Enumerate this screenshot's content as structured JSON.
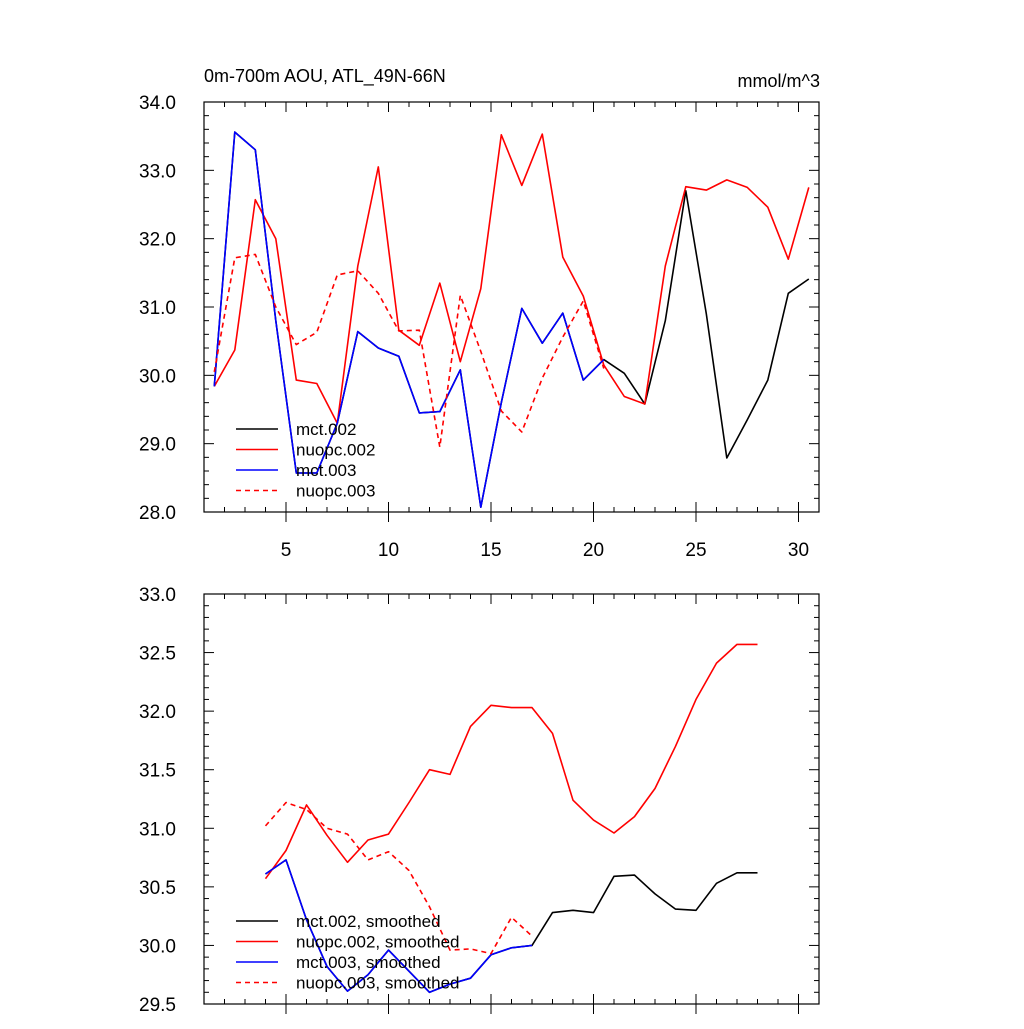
{
  "chart_data": [
    {
      "type": "line",
      "title": "0m-700m AOU, ATL_49N-66N",
      "units": "mmol/m^3",
      "xlim": [
        1,
        31
      ],
      "ylim": [
        28.0,
        34.0
      ],
      "x_ticks": [
        5,
        10,
        15,
        20,
        25,
        30
      ],
      "x_tick_labels": [
        "5",
        "10",
        "15",
        "20",
        "25",
        "30"
      ],
      "y_ticks": [
        28.0,
        29.0,
        30.0,
        31.0,
        32.0,
        33.0,
        34.0
      ],
      "y_tick_labels": [
        "28.0",
        "29.0",
        "30.0",
        "31.0",
        "32.0",
        "33.0",
        "34.0"
      ],
      "legend_position": "bottom-left",
      "series": [
        {
          "name": "mct.002",
          "color": "#000000",
          "dash": "solid",
          "x": [
            1.5,
            2.5,
            3.5,
            4.5,
            5.5,
            6.5,
            7.5,
            8.5,
            9.5,
            10.5,
            11.5,
            12.5,
            13.5,
            14.5,
            15.5,
            16.5,
            17.5,
            18.5,
            19.5,
            20.5,
            21.5,
            22.5,
            23.5,
            24.5,
            25.5,
            26.5,
            27.5,
            28.5,
            29.5,
            30.5
          ],
          "values": [
            29.84,
            33.56,
            33.3,
            30.8,
            28.57,
            28.57,
            29.3,
            30.64,
            30.4,
            30.28,
            29.45,
            29.47,
            30.08,
            28.07,
            29.6,
            30.98,
            30.47,
            30.91,
            29.93,
            30.23,
            30.03,
            29.58,
            30.8,
            32.7,
            30.9,
            28.79,
            29.35,
            29.93,
            31.2,
            31.41
          ]
        },
        {
          "name": "nuopc.002",
          "color": "#ff0000",
          "dash": "solid",
          "x": [
            1.5,
            2.5,
            3.5,
            4.5,
            5.5,
            6.5,
            7.5,
            8.5,
            9.5,
            10.5,
            11.5,
            12.5,
            13.5,
            14.5,
            15.5,
            16.5,
            17.5,
            18.5,
            19.5,
            20.5,
            21.5,
            22.5,
            23.5,
            24.5,
            25.5,
            26.5,
            27.5,
            28.5,
            29.5,
            30.5
          ],
          "values": [
            29.84,
            30.37,
            32.57,
            32.0,
            29.93,
            29.88,
            29.3,
            31.6,
            33.05,
            30.66,
            30.44,
            31.35,
            30.2,
            31.27,
            33.52,
            32.78,
            33.53,
            31.73,
            31.16,
            30.15,
            29.69,
            29.58,
            31.6,
            32.76,
            32.71,
            32.86,
            32.75,
            32.46,
            31.7,
            32.75
          ]
        },
        {
          "name": "mct.003",
          "color": "#0000ff",
          "dash": "solid",
          "x": [
            1.5,
            2.5,
            3.5,
            4.5,
            5.5,
            6.5,
            7.5,
            8.5,
            9.5,
            10.5,
            11.5,
            12.5,
            13.5,
            14.5,
            15.5,
            16.5,
            17.5,
            18.5,
            19.5,
            20.5
          ],
          "values": [
            29.84,
            33.56,
            33.3,
            30.8,
            28.57,
            28.57,
            29.3,
            30.64,
            30.4,
            30.28,
            29.45,
            29.47,
            30.08,
            28.07,
            29.6,
            30.98,
            30.47,
            30.91,
            29.93,
            30.23
          ]
        },
        {
          "name": "nuopc.003",
          "color": "#ff0000",
          "dash": "dashed",
          "x": [
            1.5,
            2.5,
            3.5,
            4.5,
            5.5,
            6.5,
            7.5,
            8.5,
            9.5,
            10.5,
            11.5,
            12.5,
            13.5,
            14.5,
            15.5,
            16.5,
            17.5,
            18.5,
            19.5,
            20.5
          ],
          "values": [
            30.05,
            31.72,
            31.77,
            31.0,
            30.45,
            30.63,
            31.47,
            31.53,
            31.2,
            30.65,
            30.66,
            28.95,
            31.17,
            30.35,
            29.48,
            29.17,
            29.96,
            30.56,
            31.09,
            30.1
          ]
        }
      ]
    },
    {
      "type": "line",
      "title": "",
      "xlim": [
        1,
        31
      ],
      "ylim": [
        29.5,
        33.0
      ],
      "x_ticks": [
        5,
        10,
        15,
        20,
        25,
        30
      ],
      "x_tick_labels": [],
      "y_ticks": [
        29.5,
        30.0,
        30.5,
        31.0,
        31.5,
        32.0,
        32.5,
        33.0
      ],
      "y_tick_labels": [
        "29.5",
        "30.0",
        "30.5",
        "31.0",
        "31.5",
        "32.0",
        "32.5",
        "33.0"
      ],
      "legend_position": "bottom-left",
      "series": [
        {
          "name": "mct.002, smoothed",
          "color": "#000000",
          "dash": "solid",
          "x": [
            4,
            5,
            6,
            7,
            8,
            9,
            10,
            11,
            12,
            13,
            14,
            15,
            16,
            17,
            18,
            19,
            20,
            21,
            22,
            23,
            24,
            25,
            26,
            27,
            28
          ],
          "values": [
            30.61,
            30.73,
            30.22,
            29.82,
            29.61,
            29.75,
            29.96,
            29.78,
            29.6,
            29.67,
            29.72,
            29.92,
            29.98,
            30.0,
            30.28,
            30.3,
            30.28,
            30.59,
            30.6,
            30.44,
            30.31,
            30.3,
            30.53,
            30.62,
            30.62
          ]
        },
        {
          "name": "nuopc.002, smoothed",
          "color": "#ff0000",
          "dash": "solid",
          "x": [
            4,
            5,
            6,
            7,
            8,
            9,
            10,
            11,
            12,
            13,
            14,
            15,
            16,
            17,
            18,
            19,
            20,
            21,
            22,
            23,
            24,
            25,
            26,
            27,
            28
          ],
          "values": [
            30.57,
            30.81,
            31.2,
            30.94,
            30.71,
            30.9,
            30.95,
            31.22,
            31.5,
            31.46,
            31.87,
            32.05,
            32.03,
            32.03,
            31.81,
            31.24,
            31.07,
            30.96,
            31.1,
            31.34,
            31.7,
            32.1,
            32.41,
            32.57,
            32.57
          ]
        },
        {
          "name": "mct.003, smoothed",
          "color": "#0000ff",
          "dash": "solid",
          "x": [
            4,
            5,
            6,
            7,
            8,
            9,
            10,
            11,
            12,
            13,
            14,
            15,
            16,
            17
          ],
          "values": [
            30.61,
            30.73,
            30.22,
            29.82,
            29.61,
            29.75,
            29.96,
            29.78,
            29.6,
            29.67,
            29.72,
            29.92,
            29.98,
            30.0
          ]
        },
        {
          "name": "nuopc.003, smoothed",
          "color": "#ff0000",
          "dash": "dashed",
          "x": [
            4,
            5,
            6,
            7,
            8,
            9,
            10,
            11,
            12,
            13,
            14,
            15,
            16,
            17
          ],
          "values": [
            31.02,
            31.22,
            31.16,
            31.0,
            30.95,
            30.73,
            30.8,
            30.64,
            30.33,
            29.96,
            29.97,
            29.93,
            30.24,
            30.08
          ]
        }
      ]
    }
  ]
}
